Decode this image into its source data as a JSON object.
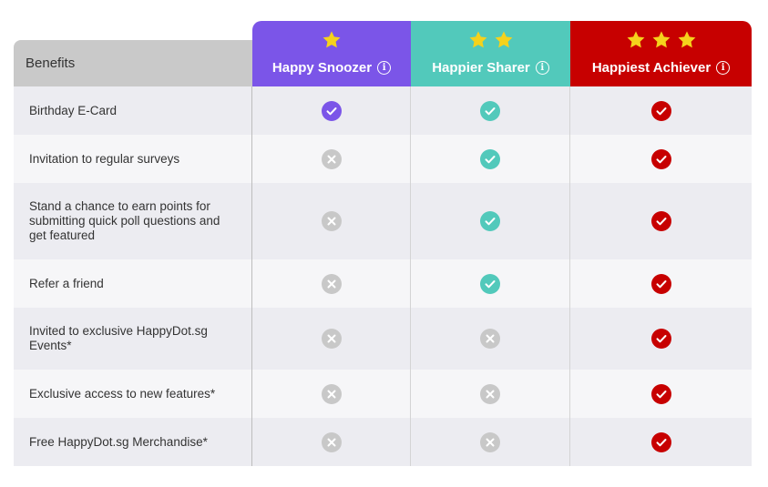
{
  "header": {
    "benefits_label": "Benefits",
    "tiers": [
      {
        "label": "Happy Snoozer",
        "stars": 1,
        "color": "#7b55e8",
        "info_icon": "info-icon"
      },
      {
        "label": "Happier Sharer",
        "stars": 2,
        "color": "#52c9bb",
        "info_icon": "info-icon"
      },
      {
        "label": "Happiest Achiever",
        "stars": 3,
        "color": "#c70000",
        "info_icon": "info-icon"
      }
    ],
    "star_color": "#f5d21c",
    "info_glyph": "i"
  },
  "rows": [
    {
      "label": "Birthday E-Card",
      "marks": [
        "check",
        "check",
        "check"
      ]
    },
    {
      "label": "Invitation to regular surveys",
      "marks": [
        "cross",
        "check",
        "check"
      ]
    },
    {
      "label": "Stand a chance to earn points for submitting quick poll questions and get featured",
      "marks": [
        "cross",
        "check",
        "check"
      ]
    },
    {
      "label": "Refer a friend",
      "marks": [
        "cross",
        "check",
        "check"
      ]
    },
    {
      "label": "Invited to exclusive HappyDot.sg Events*",
      "marks": [
        "cross",
        "cross",
        "check"
      ]
    },
    {
      "label": "Exclusive access to new features*",
      "marks": [
        "cross",
        "cross",
        "check"
      ]
    },
    {
      "label": "Free HappyDot.sg Merchandise*",
      "marks": [
        "cross",
        "cross",
        "check"
      ]
    }
  ],
  "colors": {
    "cross": "#c8c8c8"
  }
}
